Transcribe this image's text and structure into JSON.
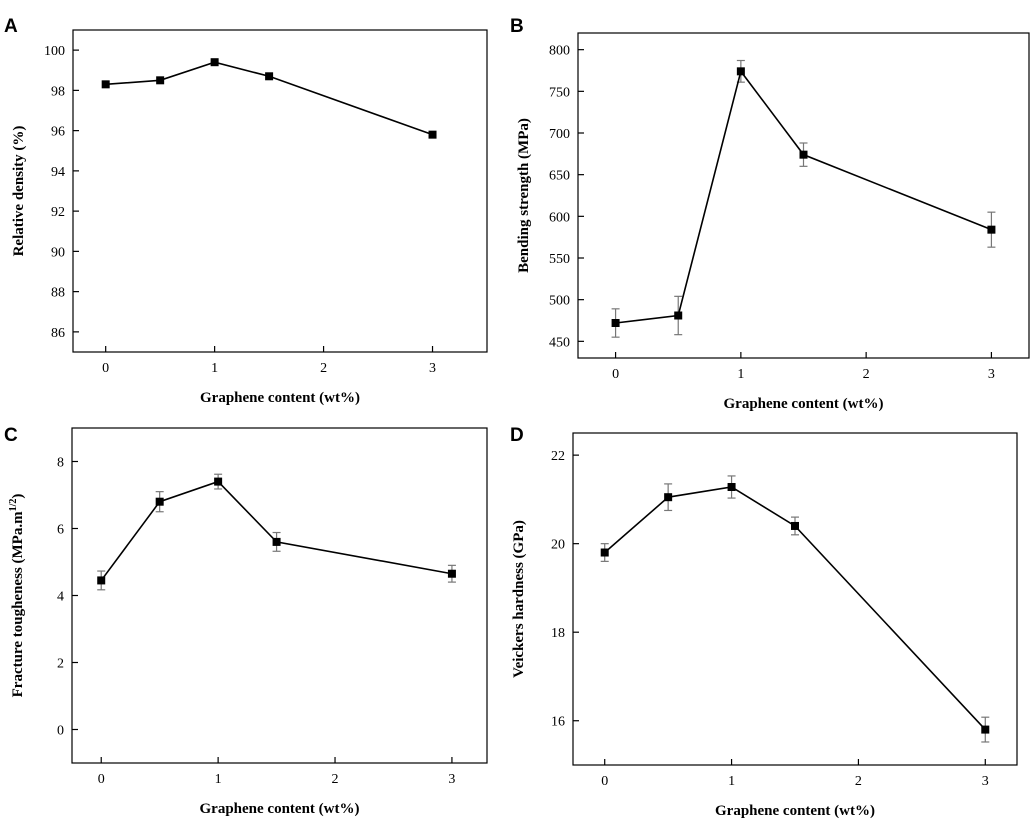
{
  "chart_data": [
    {
      "panel": "A",
      "type": "line",
      "title": "",
      "xlabel": "Graphene content (wt%)",
      "ylabel": "Relative density (%)",
      "ylabel_sup": "",
      "xlim": [
        -0.3,
        3.5
      ],
      "ylim": [
        85,
        101
      ],
      "xticks": [
        0,
        1,
        2,
        3
      ],
      "yticks": [
        86,
        88,
        90,
        92,
        94,
        96,
        98,
        100
      ],
      "x": [
        0,
        0.5,
        1,
        1.5,
        3
      ],
      "y": [
        98.3,
        98.5,
        99.4,
        98.7,
        95.8
      ],
      "errors": null
    },
    {
      "panel": "B",
      "type": "line",
      "title": "",
      "xlabel": "Graphene content (wt%)",
      "ylabel": "Bending strength (MPa)",
      "ylabel_sup": "",
      "xlim": [
        -0.3,
        3.3
      ],
      "ylim": [
        430,
        820
      ],
      "xticks": [
        0,
        1,
        2,
        3
      ],
      "yticks": [
        450,
        500,
        550,
        600,
        650,
        700,
        750,
        800
      ],
      "x": [
        0,
        0.5,
        1,
        1.5,
        3
      ],
      "y": [
        472,
        481,
        774,
        674,
        584
      ],
      "errors": [
        17,
        23,
        13,
        14,
        21
      ]
    },
    {
      "panel": "C",
      "type": "line",
      "title": "",
      "xlabel": "Graphene content (wt%)",
      "ylabel": "Fracture tougheness (MPa.m",
      "ylabel_sup": "1/2",
      "ylabel_end": ")",
      "xlim": [
        -0.25,
        3.3
      ],
      "ylim": [
        -1,
        9
      ],
      "xticks": [
        0,
        1,
        2,
        3
      ],
      "yticks": [
        0,
        2,
        4,
        6,
        8
      ],
      "x": [
        0,
        0.5,
        1,
        1.5,
        3
      ],
      "y": [
        4.45,
        6.8,
        7.4,
        5.6,
        4.65
      ],
      "errors": [
        0.28,
        0.3,
        0.22,
        0.28,
        0.25
      ]
    },
    {
      "panel": "D",
      "type": "line",
      "title": "",
      "xlabel": "Graphene content (wt%)",
      "ylabel": "Veickers hardness (GPa)",
      "ylabel_sup": "",
      "xlim": [
        -0.25,
        3.25
      ],
      "ylim": [
        15,
        22.5
      ],
      "xticks": [
        0,
        1,
        2,
        3
      ],
      "yticks": [
        16,
        18,
        20,
        22
      ],
      "x": [
        0,
        0.5,
        1,
        1.5,
        3
      ],
      "y": [
        19.8,
        21.05,
        21.28,
        20.4,
        15.8
      ],
      "errors": [
        0.2,
        0.3,
        0.25,
        0.2,
        0.28
      ]
    }
  ]
}
